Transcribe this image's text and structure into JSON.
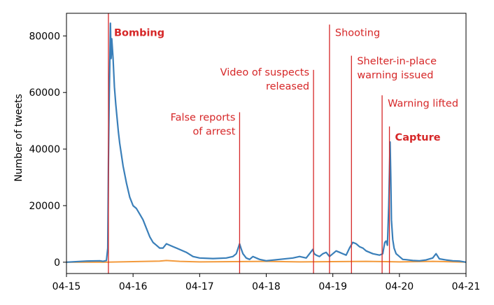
{
  "chart_data": {
    "type": "line",
    "title": "",
    "xlabel": "",
    "ylabel": "Number of tweets",
    "xlim": [
      "04-15",
      "04-21"
    ],
    "ylim": [
      -4000,
      88000
    ],
    "x_ticks": [
      "04-15",
      "04-16",
      "04-17",
      "04-18",
      "04-19",
      "04-20",
      "04-21"
    ],
    "y_ticks": [
      0,
      20000,
      40000,
      60000,
      80000
    ],
    "grid": false,
    "legend": "none",
    "colors": {
      "series1": "#3a7fb9",
      "series2": "#f39a3c",
      "events": "#d62728"
    },
    "series": [
      {
        "x": [
          15.0,
          15.3,
          15.5,
          15.55,
          15.6,
          15.62,
          15.63,
          15.64,
          15.65,
          15.66,
          15.67,
          15.68,
          15.7,
          15.72,
          15.74,
          15.76,
          15.78,
          15.8,
          15.85,
          15.9,
          15.95,
          16.0,
          16.05,
          16.1,
          16.15,
          16.2,
          16.25,
          16.3,
          16.35,
          16.4,
          16.45,
          16.5,
          16.6,
          16.7,
          16.8,
          16.9,
          17.0,
          17.2,
          17.4,
          17.5,
          17.55,
          17.6,
          17.62,
          17.65,
          17.7,
          17.75,
          17.8,
          17.85,
          17.9,
          18.0,
          18.2,
          18.4,
          18.5,
          18.6,
          18.65,
          18.7,
          18.72,
          18.75,
          18.8,
          18.85,
          18.9,
          18.95,
          19.0,
          19.05,
          19.1,
          19.15,
          19.2,
          19.25,
          19.3,
          19.35,
          19.4,
          19.45,
          19.5,
          19.6,
          19.7,
          19.75,
          19.78,
          19.8,
          19.82,
          19.84,
          19.86,
          19.87,
          19.88,
          19.9,
          19.92,
          19.95,
          20.0,
          20.05,
          20.1,
          20.2,
          20.3,
          20.4,
          20.5,
          20.55,
          20.6,
          20.7,
          20.8,
          20.9,
          21.0
        ],
        "values": [
          0,
          400,
          500,
          300,
          600,
          5000,
          36000,
          55000,
          70000,
          84500,
          72000,
          79000,
          72000,
          62000,
          56000,
          51000,
          46000,
          42000,
          34000,
          28000,
          23000,
          20000,
          19000,
          17000,
          15000,
          12000,
          9000,
          7000,
          6000,
          5000,
          5000,
          6500,
          5500,
          4500,
          3500,
          2000,
          1500,
          1300,
          1500,
          2000,
          3000,
          6500,
          5000,
          3000,
          1500,
          1000,
          2000,
          1500,
          1000,
          500,
          1000,
          1500,
          2000,
          1500,
          3000,
          4500,
          3000,
          2500,
          2000,
          3000,
          3500,
          2000,
          3000,
          4000,
          3500,
          3000,
          2500,
          5000,
          7000,
          6500,
          5500,
          5000,
          4000,
          3000,
          2500,
          3000,
          7000,
          7500,
          6000,
          20000,
          42500,
          30000,
          15000,
          8000,
          5000,
          3000,
          2000,
          1000,
          900,
          600,
          500,
          800,
          1500,
          3000,
          1200,
          800,
          500,
          400,
          0
        ]
      },
      {
        "x": [
          15.0,
          15.6,
          16.0,
          16.4,
          16.5,
          16.7,
          17.0,
          17.5,
          18.0,
          18.5,
          19.0,
          19.5,
          19.8,
          20.0,
          20.5,
          21.0
        ],
        "values": [
          0,
          0,
          200,
          400,
          600,
          300,
          100,
          200,
          300,
          100,
          200,
          300,
          200,
          100,
          300,
          0
        ]
      }
    ],
    "events": [
      {
        "x": 15.63,
        "label": [
          "Bombing"
        ],
        "bold": true,
        "top": 88000,
        "label_y": 80000,
        "anchor": "start"
      },
      {
        "x": 17.6,
        "label": [
          "False reports",
          "of arrest"
        ],
        "bold": false,
        "top": 53000,
        "label_y": 50000,
        "anchor": "end"
      },
      {
        "x": 18.71,
        "label": [
          "Video of suspects",
          "released"
        ],
        "bold": false,
        "top": 68000,
        "label_y": 66000,
        "anchor": "end"
      },
      {
        "x": 18.95,
        "label": [
          "Shooting"
        ],
        "bold": false,
        "top": 84000,
        "label_y": 80000,
        "anchor": "start"
      },
      {
        "x": 19.28,
        "label": [
          "Shelter-in-place",
          "warning issued"
        ],
        "bold": false,
        "top": 73000,
        "label_y": 70000,
        "anchor": "start"
      },
      {
        "x": 19.74,
        "label": [
          "Warning lifted"
        ],
        "bold": false,
        "top": 59000,
        "label_y": 55000,
        "anchor": "start"
      },
      {
        "x": 19.85,
        "label": [
          "Capture"
        ],
        "bold": true,
        "top": 48000,
        "label_y": 43000,
        "anchor": "start"
      }
    ]
  }
}
